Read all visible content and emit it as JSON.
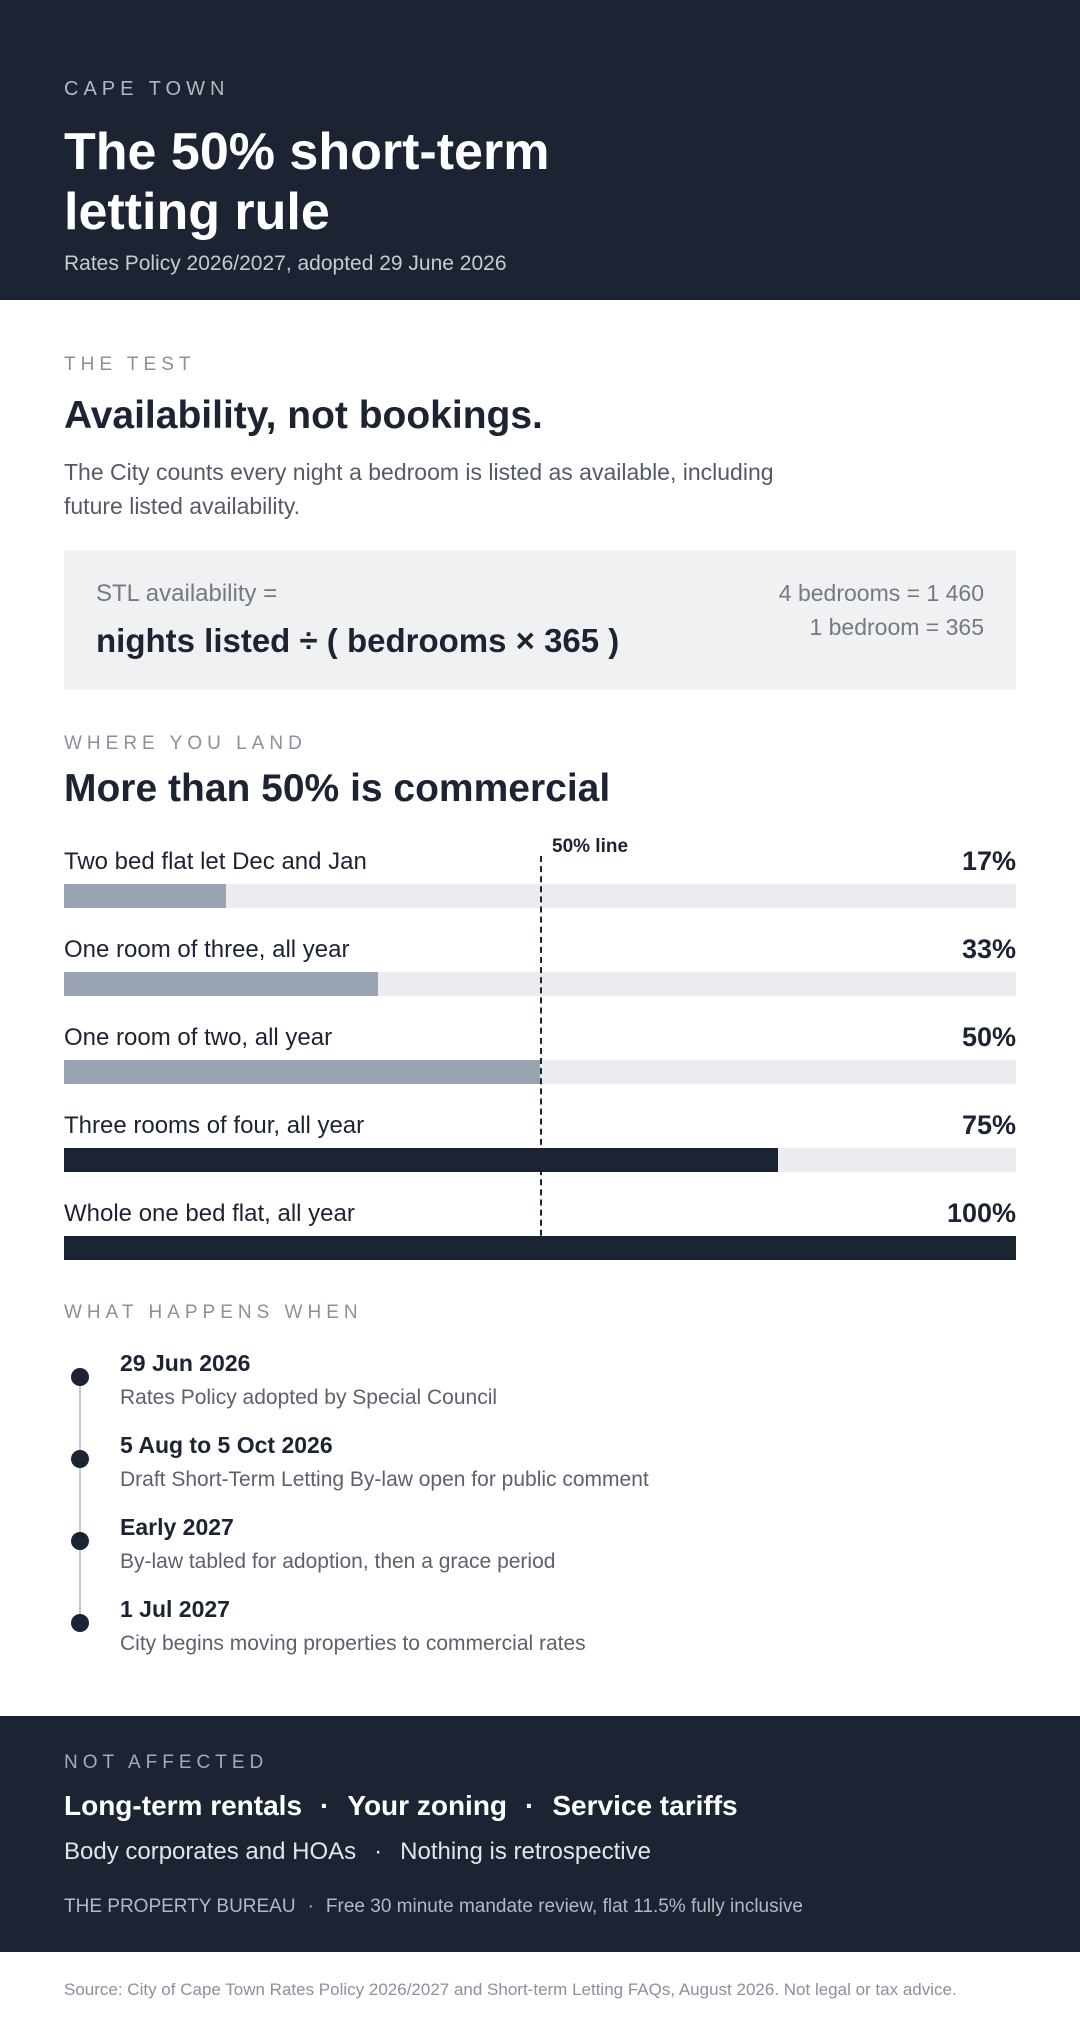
{
  "hero": {
    "eyebrow": "CAPE TOWN",
    "title": "The 50% short-term letting rule",
    "subtitle": "Rates Policy 2026/2027, adopted 29 June 2026"
  },
  "test": {
    "eyebrow": "THE TEST",
    "heading": "Availability, not bookings.",
    "lead": "The City counts every night a bedroom is listed as available, including future listed availability.",
    "formula_label": "STL availability =",
    "formula": "nights listed ÷ ( bedrooms × 365 )",
    "note_1": "4 bedrooms = 1 460",
    "note_2": "1 bedroom = 365"
  },
  "land": {
    "eyebrow": "WHERE YOU LAND",
    "heading": "More than 50% is commercial",
    "line_label": "50% line",
    "rows": [
      {
        "label": "Two bed flat let Dec and Jan",
        "pct_text": "17%",
        "value": 17
      },
      {
        "label": "One room of three, all year",
        "pct_text": "33%",
        "value": 33
      },
      {
        "label": "One room of two, all year",
        "pct_text": "50%",
        "value": 50
      },
      {
        "label": "Three rooms of four, all year",
        "pct_text": "75%",
        "value": 75
      },
      {
        "label": "Whole one bed flat, all year",
        "pct_text": "100%",
        "value": 100
      }
    ]
  },
  "timeline": {
    "eyebrow": "WHAT HAPPENS WHEN",
    "items": [
      {
        "date": "29 Jun 2026",
        "desc": "Rates Policy adopted by Special Council"
      },
      {
        "date": "5 Aug to 5 Oct 2026",
        "desc": "Draft Short-Term Letting By-law open for public comment"
      },
      {
        "date": "Early 2027",
        "desc": "By-law tabled for adoption, then a grace period"
      },
      {
        "date": "1 Jul 2027",
        "desc": "City begins moving properties to commercial rates"
      }
    ]
  },
  "not_affected": {
    "eyebrow": "NOT AFFECTED",
    "separator": "·",
    "primary": [
      "Long-term rentals",
      "Your zoning",
      "Service tariffs"
    ],
    "secondary": [
      "Body corporates and HOAs",
      "Nothing is retrospective"
    ],
    "brand": "THE PROPERTY BUREAU",
    "offer": "Free 30 minute mandate review, flat 11.5% fully inclusive"
  },
  "source": "Source: City of Cape Town Rates Policy 2026/2027 and Short-term Letting FAQs, August 2026. Not legal or tax advice.",
  "colors": {
    "navy": "#1c2333",
    "bar_under": "#9aa3b1",
    "bar_over": "#1c2333",
    "track": "#eaecef",
    "panel": "#f0f1f3"
  }
}
